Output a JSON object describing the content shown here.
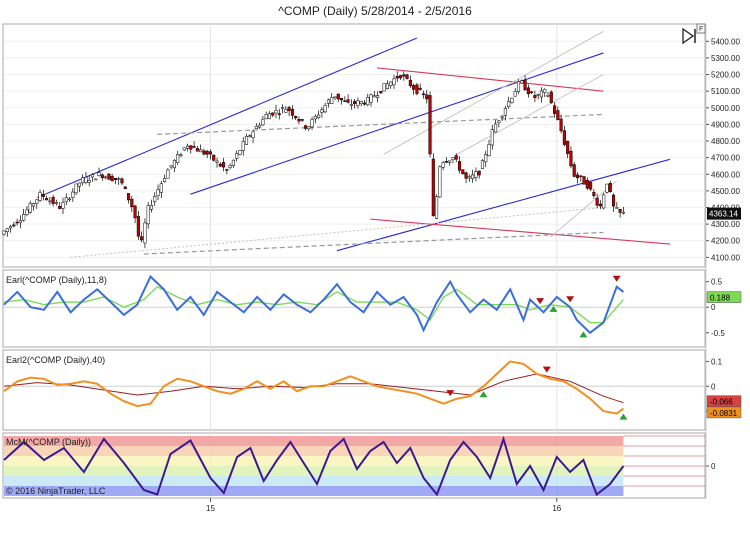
{
  "window": {
    "title": "^COMP (Daily)  5/28/2014 - 2/5/2016"
  },
  "copyright": "© 2016 NinjaTrader, LLC",
  "colors": {
    "up_candle": "#ffffff",
    "down_candle": "#c00000",
    "candle_outline": "#000000",
    "channel_blue": "#2b2bd8",
    "channel_red": "#d83a5a",
    "guide_gray": "#9a9a9a",
    "osc_blue": "#3a6fd8",
    "osc_green": "#7ed957",
    "osc_orange": "#f0901e",
    "osc_darkred": "#9b1d1d",
    "mcm_line": "#3b1a8f",
    "signal_up": "#2ea02e",
    "signal_down": "#b01010",
    "price_tag_bg": "#101010",
    "green_tag_bg": "#7ed957",
    "red_tag_bg": "#d94040",
    "orange_tag_bg": "#f0901e"
  },
  "chart_data": [
    {
      "type": "candlestick",
      "title": "^COMP (Daily)  5/28/2014 - 2/5/2016",
      "x_ticks": [
        "15",
        "16"
      ],
      "y_ticks": [
        "5400.00",
        "5300.00",
        "5200.00",
        "5100.00",
        "5000.00",
        "4900.00",
        "4800.00",
        "4700.00",
        "4600.00",
        "4500.00",
        "4400.00",
        "4300.00",
        "4200.00",
        "4100.00"
      ],
      "ylim": [
        4060,
        5480
      ],
      "last_price": "4363.14",
      "x_domain": [
        0,
        100
      ],
      "path_points": [
        [
          0,
          4240
        ],
        [
          3,
          4340
        ],
        [
          6,
          4480
        ],
        [
          9,
          4400
        ],
        [
          12,
          4560
        ],
        [
          15,
          4600
        ],
        [
          18,
          4560
        ],
        [
          20,
          4380
        ],
        [
          21,
          4150
        ],
        [
          22,
          4380
        ],
        [
          25,
          4620
        ],
        [
          28,
          4780
        ],
        [
          31,
          4720
        ],
        [
          34,
          4620
        ],
        [
          37,
          4820
        ],
        [
          40,
          4960
        ],
        [
          43,
          5000
        ],
        [
          46,
          4880
        ],
        [
          48,
          4980
        ],
        [
          50,
          5080
        ],
        [
          52,
          5020
        ],
        [
          55,
          5040
        ],
        [
          58,
          5140
        ],
        [
          60,
          5200
        ],
        [
          62,
          5120
        ],
        [
          64,
          5060
        ],
        [
          65,
          4300
        ],
        [
          66,
          4680
        ],
        [
          68,
          4700
        ],
        [
          70,
          4560
        ],
        [
          72,
          4620
        ],
        [
          74,
          4880
        ],
        [
          76,
          5020
        ],
        [
          78,
          5160
        ],
        [
          80,
          5060
        ],
        [
          82,
          5100
        ],
        [
          84,
          4880
        ],
        [
          86,
          4600
        ],
        [
          88,
          4540
        ],
        [
          90,
          4400
        ],
        [
          91,
          4560
        ],
        [
          92,
          4400
        ],
        [
          93,
          4363
        ]
      ],
      "lines": [
        {
          "kind": "channel-blue",
          "x1": 5,
          "y1": 4460,
          "x2": 62,
          "y2": 5420
        },
        {
          "kind": "channel-blue",
          "x1": 28,
          "y1": 4480,
          "x2": 90,
          "y2": 5330
        },
        {
          "kind": "channel-blue",
          "x1": 50,
          "y1": 4140,
          "x2": 100,
          "y2": 4690
        },
        {
          "kind": "channel-red",
          "x1": 56,
          "y1": 5240,
          "x2": 90,
          "y2": 5100
        },
        {
          "kind": "channel-red",
          "x1": 55,
          "y1": 4330,
          "x2": 100,
          "y2": 4180
        },
        {
          "kind": "guide-dashed",
          "x1": 23,
          "y1": 4840,
          "x2": 90,
          "y2": 4960
        },
        {
          "kind": "guide-dashed",
          "x1": 21,
          "y1": 4120,
          "x2": 90,
          "y2": 4250
        },
        {
          "kind": "guide-dotted",
          "x1": 10,
          "y1": 4100,
          "x2": 90,
          "y2": 4400
        },
        {
          "kind": "guide-fan",
          "x1": 57,
          "y1": 4720,
          "x2": 90,
          "y2": 5460
        },
        {
          "kind": "guide-fan",
          "x1": 68,
          "y1": 4720,
          "x2": 90,
          "y2": 5200
        },
        {
          "kind": "guide-fan",
          "x1": 82,
          "y1": 4220,
          "x2": 92,
          "y2": 4560
        }
      ]
    },
    {
      "type": "line",
      "label": "Earl(^COMP (Daily),11,8)",
      "y_ticks": [
        "0.5",
        "0",
        "-0.5"
      ],
      "ylim": [
        -0.7,
        0.65
      ],
      "values": [
        "0.188"
      ],
      "x_domain": [
        0,
        100
      ],
      "series_fast": [
        [
          0,
          0.05
        ],
        [
          2,
          0.3
        ],
        [
          4,
          0.0
        ],
        [
          6,
          -0.05
        ],
        [
          8,
          0.3
        ],
        [
          10,
          -0.1
        ],
        [
          12,
          0.15
        ],
        [
          14,
          0.35
        ],
        [
          16,
          0.1
        ],
        [
          18,
          -0.15
        ],
        [
          20,
          0.05
        ],
        [
          22,
          0.6
        ],
        [
          24,
          0.35
        ],
        [
          26,
          -0.05
        ],
        [
          28,
          0.2
        ],
        [
          30,
          -0.15
        ],
        [
          32,
          0.3
        ],
        [
          34,
          0.1
        ],
        [
          36,
          -0.1
        ],
        [
          38,
          0.2
        ],
        [
          40,
          -0.05
        ],
        [
          42,
          0.25
        ],
        [
          44,
          0.05
        ],
        [
          46,
          -0.1
        ],
        [
          48,
          0.15
        ],
        [
          50,
          0.45
        ],
        [
          52,
          0.1
        ],
        [
          54,
          -0.1
        ],
        [
          56,
          0.3
        ],
        [
          58,
          0.05
        ],
        [
          60,
          0.2
        ],
        [
          62,
          -0.15
        ],
        [
          63,
          -0.45
        ],
        [
          65,
          0.1
        ],
        [
          67,
          0.5
        ],
        [
          68,
          0.25
        ],
        [
          70,
          -0.1
        ],
        [
          72,
          0.15
        ],
        [
          74,
          -0.05
        ],
        [
          76,
          0.35
        ],
        [
          78,
          -0.25
        ],
        [
          79,
          0.15
        ],
        [
          81,
          -0.1
        ],
        [
          83,
          0.2
        ],
        [
          85,
          0.0
        ],
        [
          86,
          -0.25
        ],
        [
          88,
          -0.5
        ],
        [
          90,
          -0.3
        ],
        [
          92,
          0.4
        ],
        [
          93,
          0.3
        ]
      ],
      "series_slow": [
        [
          0,
          0.1
        ],
        [
          3,
          0.15
        ],
        [
          6,
          0.05
        ],
        [
          9,
          0.1
        ],
        [
          12,
          0.1
        ],
        [
          15,
          0.2
        ],
        [
          18,
          0.0
        ],
        [
          21,
          0.15
        ],
        [
          23,
          0.4
        ],
        [
          26,
          0.2
        ],
        [
          29,
          0.05
        ],
        [
          32,
          0.15
        ],
        [
          35,
          0.05
        ],
        [
          38,
          0.1
        ],
        [
          41,
          0.05
        ],
        [
          44,
          0.1
        ],
        [
          47,
          0.05
        ],
        [
          50,
          0.3
        ],
        [
          53,
          0.1
        ],
        [
          56,
          0.1
        ],
        [
          59,
          0.1
        ],
        [
          62,
          -0.05
        ],
        [
          64,
          -0.25
        ],
        [
          66,
          0.2
        ],
        [
          68,
          0.35
        ],
        [
          71,
          0.05
        ],
        [
          74,
          0.05
        ],
        [
          77,
          0.05
        ],
        [
          79,
          -0.05
        ],
        [
          82,
          0.05
        ],
        [
          85,
          0.0
        ],
        [
          88,
          -0.3
        ],
        [
          90,
          -0.3
        ],
        [
          93,
          0.15
        ]
      ],
      "signals": [
        {
          "x": 80.5,
          "dir": "down"
        },
        {
          "x": 82.5,
          "dir": "up"
        },
        {
          "x": 85,
          "dir": "down"
        },
        {
          "x": 87,
          "dir": "up"
        },
        {
          "x": 92,
          "dir": "down"
        }
      ]
    },
    {
      "type": "line",
      "label": "Earl2(^COMP (Daily),40)",
      "y_ticks": [
        "0.1",
        "0",
        "-0.1"
      ],
      "ylim": [
        -0.16,
        0.13
      ],
      "values": [
        "-0.066",
        "-0.0831"
      ],
      "x_domain": [
        0,
        100
      ],
      "series_fast": [
        [
          0,
          -0.02
        ],
        [
          2,
          0.02
        ],
        [
          4,
          0.035
        ],
        [
          6,
          0.03
        ],
        [
          8,
          0.005
        ],
        [
          10,
          0.01
        ],
        [
          12,
          0.02
        ],
        [
          14,
          0.01
        ],
        [
          16,
          -0.03
        ],
        [
          18,
          -0.06
        ],
        [
          20,
          -0.08
        ],
        [
          22,
          -0.07
        ],
        [
          24,
          0.0
        ],
        [
          26,
          0.03
        ],
        [
          28,
          0.02
        ],
        [
          30,
          0.0
        ],
        [
          32,
          -0.02
        ],
        [
          34,
          -0.03
        ],
        [
          36,
          -0.01
        ],
        [
          38,
          0.02
        ],
        [
          40,
          -0.01
        ],
        [
          42,
          0.02
        ],
        [
          44,
          -0.02
        ],
        [
          46,
          0.0
        ],
        [
          48,
          0.0
        ],
        [
          50,
          0.02
        ],
        [
          52,
          0.04
        ],
        [
          54,
          0.02
        ],
        [
          56,
          0.0
        ],
        [
          58,
          -0.01
        ],
        [
          60,
          -0.02
        ],
        [
          62,
          -0.03
        ],
        [
          64,
          -0.05
        ],
        [
          66,
          -0.07
        ],
        [
          68,
          -0.05
        ],
        [
          70,
          -0.04
        ],
        [
          72,
          0.0
        ],
        [
          74,
          0.05
        ],
        [
          76,
          0.1
        ],
        [
          78,
          0.09
        ],
        [
          80,
          0.05
        ],
        [
          82,
          0.03
        ],
        [
          84,
          0.02
        ],
        [
          86,
          -0.01
        ],
        [
          88,
          -0.05
        ],
        [
          90,
          -0.1
        ],
        [
          92,
          -0.11
        ],
        [
          93,
          -0.09
        ]
      ],
      "series_slow": [
        [
          0,
          0.0
        ],
        [
          5,
          0.015
        ],
        [
          10,
          0.005
        ],
        [
          15,
          -0.015
        ],
        [
          20,
          -0.035
        ],
        [
          25,
          -0.02
        ],
        [
          30,
          0.0
        ],
        [
          35,
          -0.01
        ],
        [
          40,
          0.0
        ],
        [
          45,
          -0.005
        ],
        [
          50,
          0.01
        ],
        [
          55,
          0.01
        ],
        [
          60,
          -0.005
        ],
        [
          65,
          -0.02
        ],
        [
          70,
          -0.035
        ],
        [
          75,
          0.02
        ],
        [
          80,
          0.05
        ],
        [
          85,
          0.02
        ],
        [
          90,
          -0.04
        ],
        [
          93,
          -0.066
        ]
      ],
      "signals": [
        {
          "x": 67,
          "dir": "down"
        },
        {
          "x": 72,
          "dir": "up"
        },
        {
          "x": 81.5,
          "dir": "down"
        },
        {
          "x": 93,
          "dir": "up"
        }
      ]
    },
    {
      "type": "line",
      "label": "McM(^COMP (Daily))",
      "y_ticks": [
        "0"
      ],
      "ylim": [
        -1,
        1
      ],
      "x_domain": [
        0,
        100
      ],
      "bands": [
        "#ef8a8a",
        "#f6c6a0",
        "#f7f3b0",
        "#d8f0a8",
        "#b9e3f2",
        "#7f8cf0"
      ],
      "series": [
        [
          0,
          0.2
        ],
        [
          3,
          0.8
        ],
        [
          6,
          0.2
        ],
        [
          9,
          0.6
        ],
        [
          12,
          -0.2
        ],
        [
          15,
          0.9
        ],
        [
          18,
          0.1
        ],
        [
          21,
          -0.8
        ],
        [
          23,
          -0.95
        ],
        [
          25,
          0.4
        ],
        [
          28,
          0.85
        ],
        [
          31,
          -0.4
        ],
        [
          33,
          -0.9
        ],
        [
          35,
          0.3
        ],
        [
          37,
          0.6
        ],
        [
          39,
          -0.5
        ],
        [
          41,
          0.2
        ],
        [
          43,
          0.8
        ],
        [
          45,
          0.1
        ],
        [
          47,
          -0.6
        ],
        [
          49,
          0.5
        ],
        [
          51,
          0.9
        ],
        [
          53,
          -0.1
        ],
        [
          55,
          0.5
        ],
        [
          57,
          0.8
        ],
        [
          59,
          0.1
        ],
        [
          61,
          0.6
        ],
        [
          63,
          -0.4
        ],
        [
          65,
          -0.95
        ],
        [
          67,
          0.2
        ],
        [
          69,
          0.8
        ],
        [
          71,
          0.3
        ],
        [
          73,
          -0.4
        ],
        [
          75,
          0.9
        ],
        [
          77,
          -0.6
        ],
        [
          79,
          0.0
        ],
        [
          81,
          -0.8
        ],
        [
          83,
          0.3
        ],
        [
          85,
          -0.2
        ],
        [
          87,
          0.2
        ],
        [
          89,
          -0.95
        ],
        [
          91,
          -0.6
        ],
        [
          93,
          0.0
        ]
      ]
    }
  ]
}
